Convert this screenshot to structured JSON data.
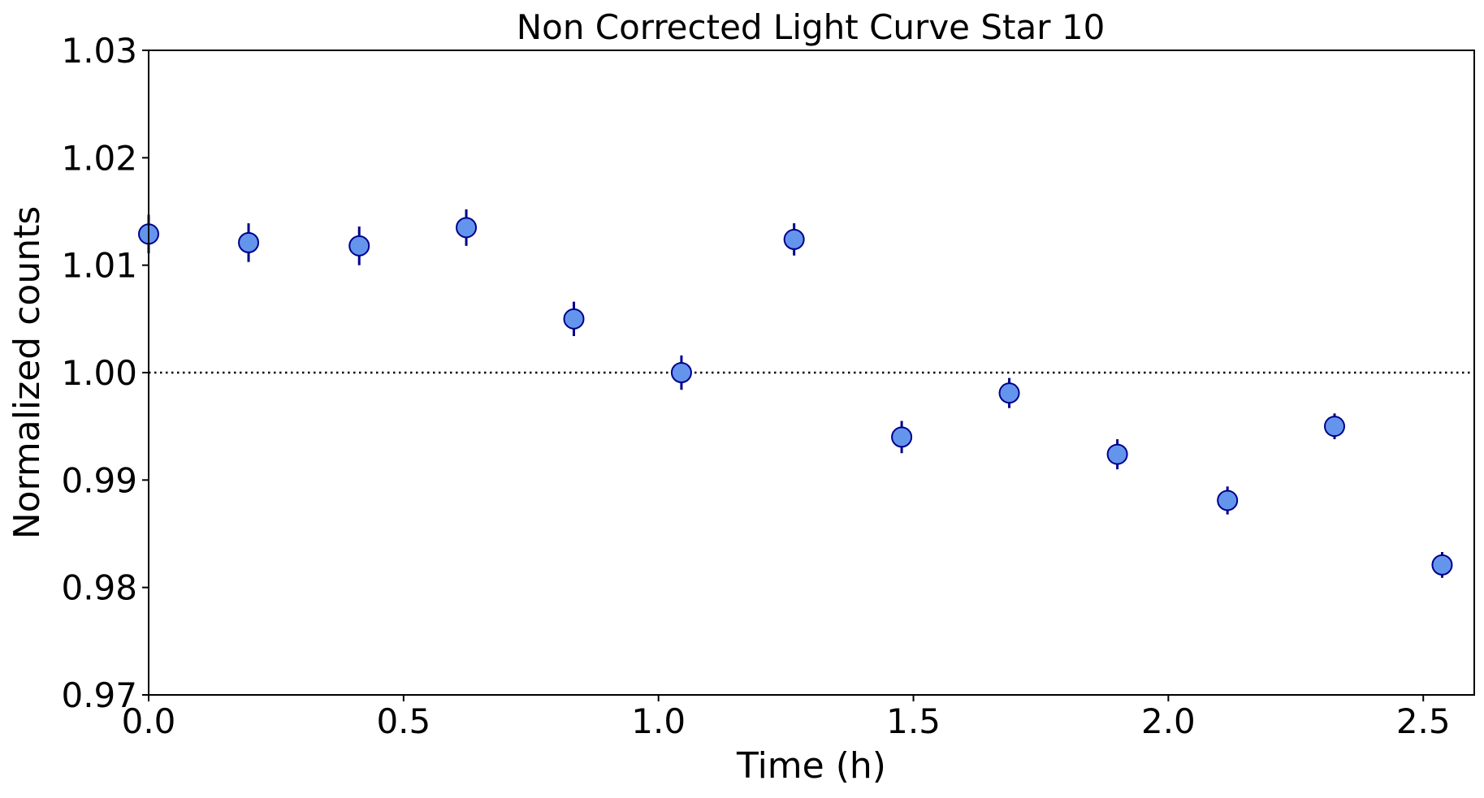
{
  "chart_data": {
    "type": "scatter",
    "title": "Non Corrected Light Curve Star 10",
    "xlabel": "Time (h)",
    "ylabel": "Normalized counts",
    "xlim": [
      0.0,
      2.6
    ],
    "ylim": [
      0.97,
      1.03
    ],
    "xticks": [
      0.0,
      0.5,
      1.0,
      1.5,
      2.0,
      2.5
    ],
    "xtick_labels": [
      "0.0",
      "0.5",
      "1.0",
      "1.5",
      "2.0",
      "2.5"
    ],
    "yticks": [
      0.97,
      0.98,
      0.99,
      1.0,
      1.01,
      1.02,
      1.03
    ],
    "ytick_labels": [
      "0.97",
      "0.98",
      "0.99",
      "1.00",
      "1.01",
      "1.02",
      "1.03"
    ],
    "grid": false,
    "reference_line": {
      "y": 1.0,
      "style": "dotted",
      "color": "#000000"
    },
    "marker_color": "#6495ed",
    "marker_edge_color": "#00008b",
    "errorbar_color": "#00008b",
    "series": [
      {
        "x": [
          0.0,
          0.196,
          0.413,
          0.623,
          0.834,
          1.045,
          1.266,
          1.477,
          1.688,
          1.9,
          2.116,
          2.326,
          2.537
        ],
        "y": [
          1.0129,
          1.0121,
          1.0118,
          1.0135,
          1.005,
          1.0,
          1.0124,
          0.994,
          0.9981,
          0.9924,
          0.9881,
          0.995,
          0.9821
        ],
        "yerr": [
          0.0018,
          0.0018,
          0.0018,
          0.0017,
          0.0016,
          0.0016,
          0.0015,
          0.0015,
          0.0014,
          0.0014,
          0.0013,
          0.0012,
          0.0012
        ]
      }
    ]
  }
}
